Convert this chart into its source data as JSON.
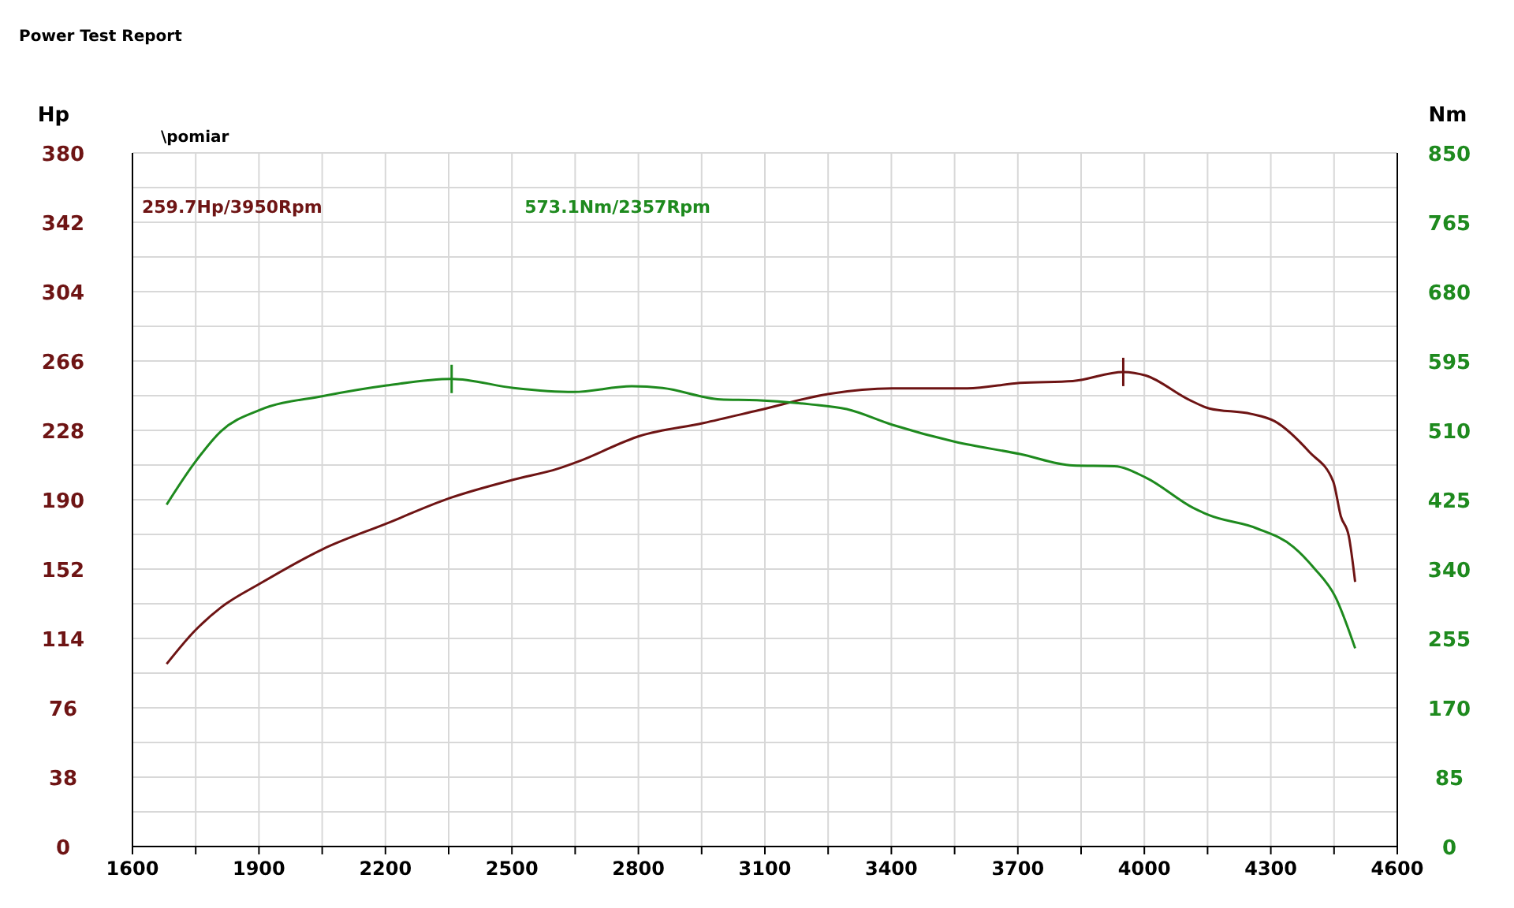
{
  "chart_data": {
    "type": "line",
    "title": "Power Test Report",
    "subtitle": "\\pomiar",
    "ylabel": "Hp",
    "y2label": "Nm",
    "xlim": [
      1600,
      4600
    ],
    "xticks": [
      1600,
      {
        "value": 1750,
        "label": null
      },
      1900,
      {
        "value": 2050,
        "label": null
      },
      2200,
      {
        "value": 2350,
        "label": null
      },
      2500,
      {
        "value": 2650,
        "label": null
      },
      2800,
      {
        "value": 2950,
        "label": null
      },
      3100,
      {
        "value": 3250,
        "label": null
      },
      3400,
      {
        "value": 3550,
        "label": null
      },
      3700,
      {
        "value": 3850,
        "label": null
      },
      4000,
      {
        "value": 4150,
        "label": null
      },
      4300,
      {
        "value": 4450,
        "label": null
      },
      4600
    ],
    "ylim": [
      0,
      380
    ],
    "yticks": [
      0,
      {
        "value": 19,
        "label": null
      },
      38,
      {
        "value": 57,
        "label": null
      },
      76,
      {
        "value": 95,
        "label": null
      },
      114,
      {
        "value": 133,
        "label": null
      },
      152,
      {
        "value": 171,
        "label": null
      },
      190,
      {
        "value": 209,
        "label": null
      },
      228,
      {
        "value": 247,
        "label": null
      },
      266,
      {
        "value": 285,
        "label": null
      },
      304,
      {
        "value": 323,
        "label": null
      },
      342,
      {
        "value": 361,
        "label": null
      },
      380
    ],
    "y2lim": [
      0,
      850
    ],
    "y2ticks": [
      0,
      85,
      170,
      255,
      340,
      425,
      510,
      595,
      680,
      765,
      850
    ],
    "grid": true,
    "marker": "none",
    "line_style": "solid",
    "series": [
      {
        "color": "#6e1414",
        "x": [
          1681,
          1747,
          1810,
          1902,
          2052,
          2203,
          2354,
          2504,
          2609,
          2658,
          2804,
          2954,
          3085,
          3252,
          3401,
          3580,
          3705,
          3830,
          3950,
          4004,
          4104,
          4154,
          4253,
          4309,
          4392,
          4448,
          4466,
          4485,
          4500
        ],
        "values": [
          100,
          118,
          131,
          144,
          163,
          177,
          191,
          201,
          207,
          211,
          225,
          232,
          239,
          248,
          251,
          251,
          254,
          255,
          260,
          258,
          245,
          240,
          237,
          233,
          216,
          200,
          181,
          170,
          145
        ]
      },
      {
        "color": "#1e8a1e",
        "axis": "y2",
        "x": [
          1681,
          1747,
          1810,
          1902,
          2052,
          2203,
          2357,
          2504,
          2646,
          2784,
          2857,
          2994,
          3081,
          3206,
          3294,
          3401,
          3551,
          3705,
          3830,
          3929,
          4004,
          4116,
          4154,
          4266,
          4354,
          4403,
          4453,
          4500
        ],
        "values": [
          419,
          470,
          509,
          535,
          552,
          565,
          573,
          562,
          557,
          564,
          562,
          548,
          547,
          542,
          536,
          517,
          496,
          481,
          467,
          466,
          452,
          415,
          406,
          390,
          367,
          341,
          306,
          243
        ]
      }
    ],
    "annotations": [
      "259.7Hp/3950Rpm",
      "573.1Nm/2357Rpm"
    ]
  }
}
